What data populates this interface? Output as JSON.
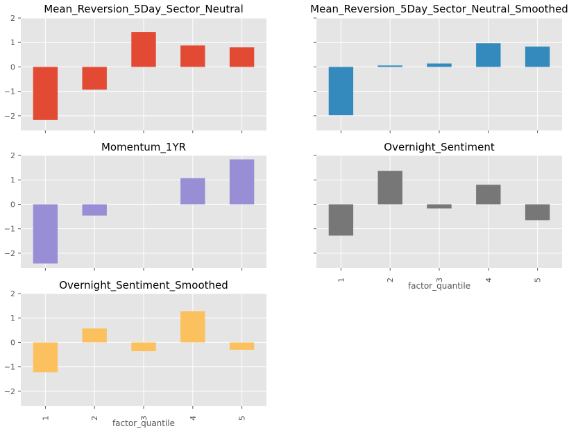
{
  "chart_data": [
    {
      "type": "bar",
      "title": "Mean_Reversion_5Day_Sector_Neutral",
      "categories": [
        "1",
        "2",
        "3",
        "4",
        "5"
      ],
      "values": [
        -2.17,
        -0.93,
        1.43,
        0.88,
        0.8
      ],
      "color": "#e24a33",
      "ylim": [
        -2.6,
        2.0
      ],
      "yticks": [
        "−2",
        "−1",
        "0",
        "1",
        "2"
      ],
      "show_xticklabels": false,
      "xlabel": ""
    },
    {
      "type": "bar",
      "title": "Mean_Reversion_5Day_Sector_Neutral_Smoothed",
      "categories": [
        "1",
        "2",
        "3",
        "4",
        "5"
      ],
      "values": [
        -1.98,
        0.06,
        0.14,
        0.97,
        0.83
      ],
      "color": "#348abd",
      "ylim": [
        -2.6,
        2.0
      ],
      "yticks": [],
      "show_xticklabels": false,
      "xlabel": ""
    },
    {
      "type": "bar",
      "title": "Momentum_1YR",
      "categories": [
        "1",
        "2",
        "3",
        "4",
        "5"
      ],
      "values": [
        -2.42,
        -0.46,
        0.0,
        1.07,
        1.84
      ],
      "color": "#988ed5",
      "ylim": [
        -2.6,
        2.0
      ],
      "yticks": [
        "−2",
        "−1",
        "0",
        "1",
        "2"
      ],
      "show_xticklabels": false,
      "xlabel": ""
    },
    {
      "type": "bar",
      "title": "Overnight_Sentiment",
      "categories": [
        "1",
        "2",
        "3",
        "4",
        "5"
      ],
      "values": [
        -1.28,
        1.37,
        -0.17,
        0.8,
        -0.65
      ],
      "color": "#777777",
      "ylim": [
        -2.6,
        2.0
      ],
      "yticks": [],
      "show_xticklabels": true,
      "xlabel": "factor_quantile"
    },
    {
      "type": "bar",
      "title": "Overnight_Sentiment_Smoothed",
      "categories": [
        "1",
        "2",
        "3",
        "4",
        "5"
      ],
      "values": [
        -1.22,
        0.57,
        -0.36,
        1.28,
        -0.3
      ],
      "color": "#fbc15e",
      "ylim": [
        -2.6,
        2.0
      ],
      "yticks": [
        "−2",
        "−1",
        "0",
        "1",
        "2"
      ],
      "show_xticklabels": true,
      "xlabel": "factor_quantile"
    }
  ]
}
